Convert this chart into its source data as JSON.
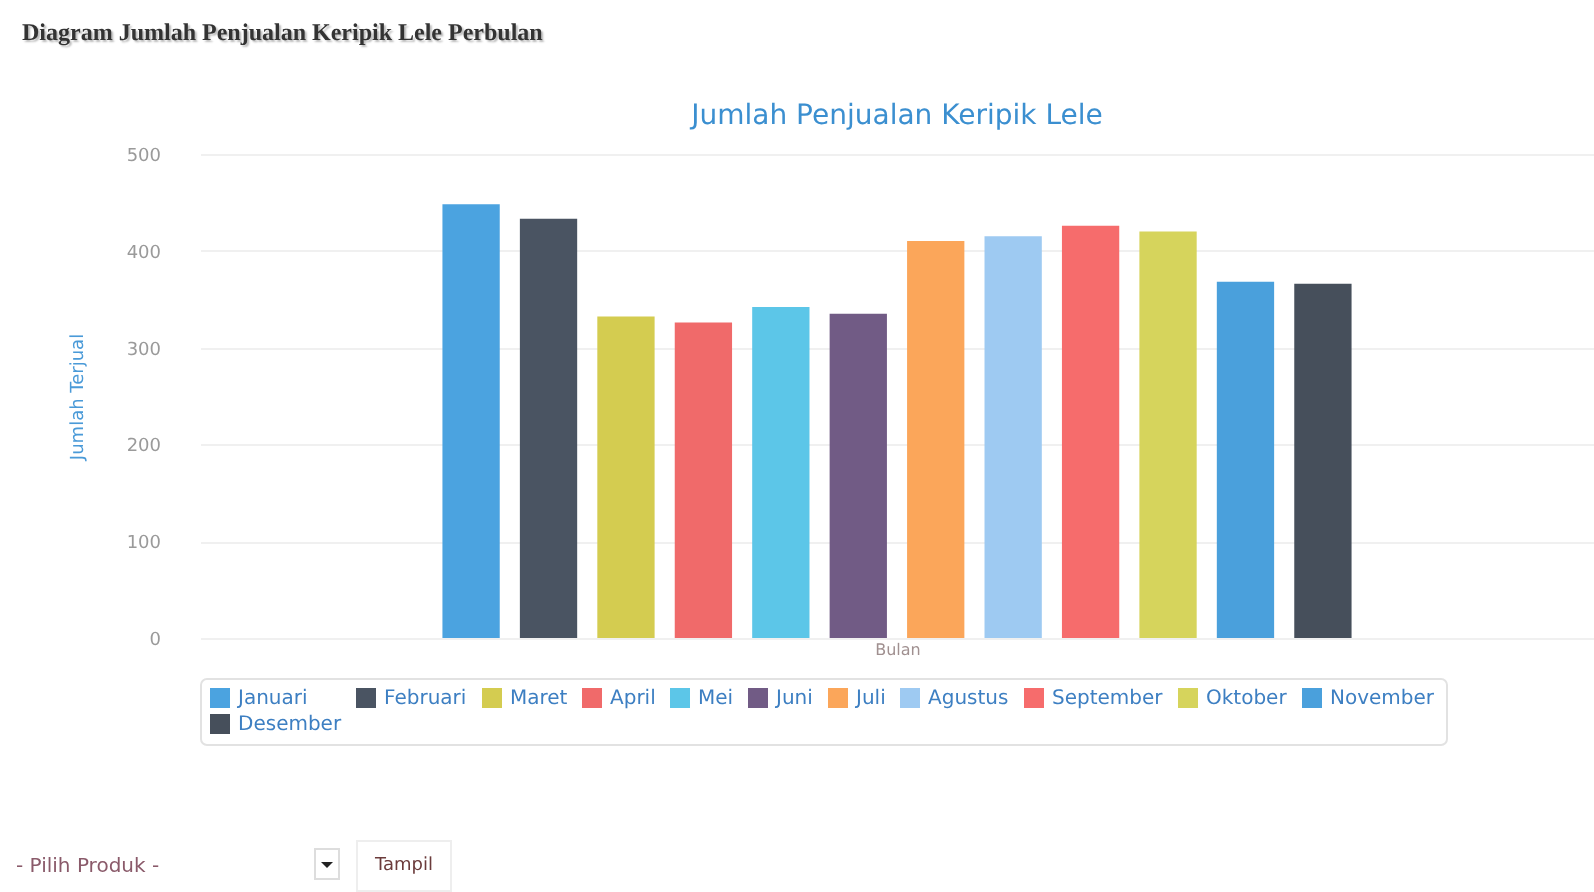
{
  "chart_data": {
    "type": "bar",
    "title": "Diagram Jumlah Penjualan Keripik Lele Perbulan",
    "subtitle": "Jumlah Penjualan Keripik Lele",
    "xlabel": "Bulan",
    "ylabel": "Jumlah Terjual",
    "categories": [
      null
    ],
    "series": [
      {
        "name": "Januari",
        "color": "#4ba3e0",
        "values": [
          448
        ]
      },
      {
        "name": "Februari",
        "color": "#4a5462",
        "values": [
          433
        ]
      },
      {
        "name": "Maret",
        "color": "#d4cc50",
        "values": [
          332
        ]
      },
      {
        "name": "April",
        "color": "#f06a6a",
        "values": [
          326
        ]
      },
      {
        "name": "Mei",
        "color": "#5cc6e8",
        "values": [
          342
        ]
      },
      {
        "name": "Juni",
        "color": "#715b85",
        "values": [
          335
        ]
      },
      {
        "name": "Juli",
        "color": "#fba65a",
        "values": [
          410
        ]
      },
      {
        "name": "Agustus",
        "color": "#9ecaf2",
        "values": [
          415
        ]
      },
      {
        "name": "September",
        "color": "#f66c6c",
        "values": [
          426
        ]
      },
      {
        "name": "Oktober",
        "color": "#d6d45c",
        "values": [
          420
        ]
      },
      {
        "name": "November",
        "color": "#4aa0dc",
        "values": [
          368
        ]
      },
      {
        "name": "Desember",
        "color": "#464f5b",
        "values": [
          366
        ]
      }
    ],
    "ylim": [
      0,
      500
    ],
    "yticks": [
      0,
      100,
      200,
      300,
      400,
      500
    ],
    "grid": "y",
    "legend": "bottom",
    "annotations": [
      "- Pilih Produk -",
      "Tampil"
    ]
  }
}
